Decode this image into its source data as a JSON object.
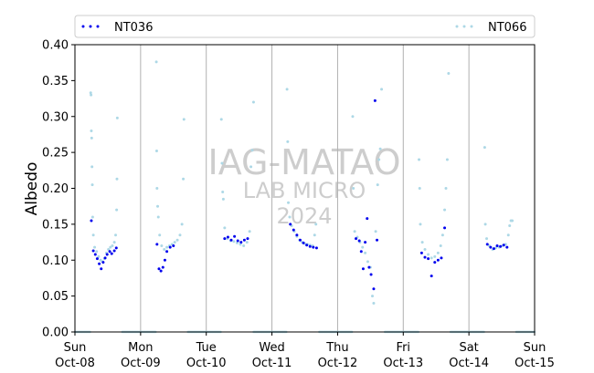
{
  "chart_data": {
    "type": "scatter",
    "ylabel": "Albedo",
    "ylim": [
      0,
      0.4
    ],
    "yticks": [
      0.0,
      0.05,
      0.1,
      0.15,
      0.2,
      0.25,
      0.3,
      0.35,
      0.4
    ],
    "ytick_labels": [
      "0.00",
      "0.05",
      "0.10",
      "0.15",
      "0.20",
      "0.25",
      "0.30",
      "0.35",
      "0.40"
    ],
    "xlim": [
      0,
      7
    ],
    "x_unit": "days from Oct-08 00:00",
    "x_ticks": [
      {
        "day": "Sun",
        "date": "Oct-08"
      },
      {
        "day": "Mon",
        "date": "Oct-09"
      },
      {
        "day": "Tue",
        "date": "Oct-10"
      },
      {
        "day": "Wed",
        "date": "Oct-11"
      },
      {
        "day": "Thu",
        "date": "Oct-12"
      },
      {
        "day": "Fri",
        "date": "Oct-13"
      },
      {
        "day": "Sat",
        "date": "Oct-14"
      },
      {
        "day": "Sun",
        "date": "Oct-15"
      }
    ],
    "grid": "vertical day lines",
    "legend_placement": "top, spanning",
    "watermark": [
      "IAG-MATAO",
      "LAB MICRO",
      "2024"
    ],
    "series": [
      {
        "name": "NT036",
        "color": "#0000ee",
        "points": [
          [
            0.25,
            0.155
          ],
          [
            0.28,
            0.113
          ],
          [
            0.31,
            0.108
          ],
          [
            0.34,
            0.102
          ],
          [
            0.37,
            0.095
          ],
          [
            0.4,
            0.088
          ],
          [
            0.43,
            0.097
          ],
          [
            0.46,
            0.103
          ],
          [
            0.49,
            0.108
          ],
          [
            0.53,
            0.112
          ],
          [
            0.56,
            0.109
          ],
          [
            0.6,
            0.113
          ],
          [
            0.63,
            0.117
          ],
          [
            1.25,
            0.122
          ],
          [
            1.28,
            0.088
          ],
          [
            1.31,
            0.085
          ],
          [
            1.34,
            0.09
          ],
          [
            1.37,
            0.1
          ],
          [
            1.4,
            0.112
          ],
          [
            1.45,
            0.118
          ],
          [
            1.5,
            0.12
          ],
          [
            2.28,
            0.13
          ],
          [
            2.33,
            0.132
          ],
          [
            2.38,
            0.128
          ],
          [
            2.43,
            0.133
          ],
          [
            2.48,
            0.127
          ],
          [
            2.53,
            0.125
          ],
          [
            2.58,
            0.128
          ],
          [
            2.63,
            0.13
          ],
          [
            3.28,
            0.15
          ],
          [
            3.33,
            0.142
          ],
          [
            3.38,
            0.135
          ],
          [
            3.43,
            0.128
          ],
          [
            3.48,
            0.124
          ],
          [
            3.53,
            0.121
          ],
          [
            3.58,
            0.119
          ],
          [
            3.63,
            0.118
          ],
          [
            3.68,
            0.117
          ],
          [
            4.28,
            0.13
          ],
          [
            4.33,
            0.127
          ],
          [
            4.36,
            0.112
          ],
          [
            4.39,
            0.088
          ],
          [
            4.42,
            0.125
          ],
          [
            4.45,
            0.158
          ],
          [
            4.48,
            0.09
          ],
          [
            4.51,
            0.08
          ],
          [
            4.55,
            0.06
          ],
          [
            4.57,
            0.322
          ],
          [
            4.6,
            0.128
          ],
          [
            5.28,
            0.11
          ],
          [
            5.33,
            0.104
          ],
          [
            5.38,
            0.102
          ],
          [
            5.43,
            0.078
          ],
          [
            5.48,
            0.097
          ],
          [
            5.53,
            0.1
          ],
          [
            5.58,
            0.103
          ],
          [
            5.63,
            0.145
          ],
          [
            6.28,
            0.122
          ],
          [
            6.33,
            0.118
          ],
          [
            6.38,
            0.116
          ],
          [
            6.43,
            0.12
          ],
          [
            6.48,
            0.119
          ],
          [
            6.53,
            0.121
          ],
          [
            6.58,
            0.118
          ]
        ],
        "night_zero": true
      },
      {
        "name": "NT066",
        "color": "#add8e6",
        "points": [
          [
            0.24,
            0.333
          ],
          [
            0.245,
            0.33
          ],
          [
            0.25,
            0.28
          ],
          [
            0.255,
            0.27
          ],
          [
            0.26,
            0.23
          ],
          [
            0.265,
            0.205
          ],
          [
            0.27,
            0.16
          ],
          [
            0.28,
            0.135
          ],
          [
            0.3,
            0.118
          ],
          [
            0.33,
            0.112
          ],
          [
            0.36,
            0.105
          ],
          [
            0.39,
            0.1
          ],
          [
            0.42,
            0.098
          ],
          [
            0.45,
            0.102
          ],
          [
            0.48,
            0.11
          ],
          [
            0.51,
            0.115
          ],
          [
            0.54,
            0.118
          ],
          [
            0.57,
            0.12
          ],
          [
            0.6,
            0.125
          ],
          [
            0.62,
            0.135
          ],
          [
            0.635,
            0.17
          ],
          [
            0.64,
            0.213
          ],
          [
            0.645,
            0.298
          ],
          [
            1.24,
            0.376
          ],
          [
            1.245,
            0.252
          ],
          [
            1.25,
            0.2
          ],
          [
            1.26,
            0.175
          ],
          [
            1.27,
            0.16
          ],
          [
            1.29,
            0.135
          ],
          [
            1.32,
            0.12
          ],
          [
            1.36,
            0.115
          ],
          [
            1.4,
            0.118
          ],
          [
            1.44,
            0.12
          ],
          [
            1.48,
            0.122
          ],
          [
            1.52,
            0.125
          ],
          [
            1.56,
            0.128
          ],
          [
            1.6,
            0.135
          ],
          [
            1.63,
            0.15
          ],
          [
            1.65,
            0.213
          ],
          [
            1.66,
            0.296
          ],
          [
            2.23,
            0.296
          ],
          [
            2.24,
            0.235
          ],
          [
            2.25,
            0.195
          ],
          [
            2.26,
            0.185
          ],
          [
            2.28,
            0.145
          ],
          [
            2.32,
            0.13
          ],
          [
            2.37,
            0.127
          ],
          [
            2.42,
            0.126
          ],
          [
            2.47,
            0.124
          ],
          [
            2.52,
            0.122
          ],
          [
            2.57,
            0.12
          ],
          [
            2.62,
            0.125
          ],
          [
            2.66,
            0.14
          ],
          [
            2.68,
            0.23
          ],
          [
            2.7,
            0.253
          ],
          [
            2.72,
            0.32
          ],
          [
            3.23,
            0.338
          ],
          [
            3.24,
            0.265
          ],
          [
            3.25,
            0.18
          ],
          [
            3.27,
            0.16
          ],
          [
            3.3,
            0.148
          ],
          [
            3.34,
            0.14
          ],
          [
            3.38,
            0.133
          ],
          [
            3.42,
            0.128
          ],
          [
            3.46,
            0.125
          ],
          [
            3.5,
            0.123
          ],
          [
            3.54,
            0.122
          ],
          [
            3.58,
            0.121
          ],
          [
            3.62,
            0.12
          ],
          [
            3.65,
            0.135
          ],
          [
            3.67,
            0.15
          ],
          [
            4.23,
            0.3
          ],
          [
            4.24,
            0.2
          ],
          [
            4.26,
            0.14
          ],
          [
            4.3,
            0.132
          ],
          [
            4.34,
            0.125
          ],
          [
            4.38,
            0.118
          ],
          [
            4.42,
            0.11
          ],
          [
            4.46,
            0.098
          ],
          [
            4.5,
            0.09
          ],
          [
            4.53,
            0.05
          ],
          [
            4.55,
            0.04
          ],
          [
            4.58,
            0.14
          ],
          [
            4.61,
            0.205
          ],
          [
            4.63,
            0.24
          ],
          [
            4.65,
            0.255
          ],
          [
            4.67,
            0.338
          ],
          [
            5.24,
            0.24
          ],
          [
            5.25,
            0.2
          ],
          [
            5.26,
            0.15
          ],
          [
            5.29,
            0.125
          ],
          [
            5.33,
            0.115
          ],
          [
            5.38,
            0.108
          ],
          [
            5.43,
            0.103
          ],
          [
            5.48,
            0.105
          ],
          [
            5.53,
            0.11
          ],
          [
            5.57,
            0.12
          ],
          [
            5.6,
            0.135
          ],
          [
            5.63,
            0.17
          ],
          [
            5.65,
            0.2
          ],
          [
            5.67,
            0.24
          ],
          [
            5.69,
            0.36
          ],
          [
            6.24,
            0.257
          ],
          [
            6.25,
            0.15
          ],
          [
            6.27,
            0.13
          ],
          [
            6.31,
            0.12
          ],
          [
            6.36,
            0.115
          ],
          [
            6.41,
            0.117
          ],
          [
            6.46,
            0.118
          ],
          [
            6.51,
            0.12
          ],
          [
            6.56,
            0.122
          ],
          [
            6.6,
            0.135
          ],
          [
            6.62,
            0.148
          ],
          [
            6.64,
            0.155
          ],
          [
            6.66,
            0.155
          ]
        ],
        "night_zero": true
      }
    ]
  }
}
